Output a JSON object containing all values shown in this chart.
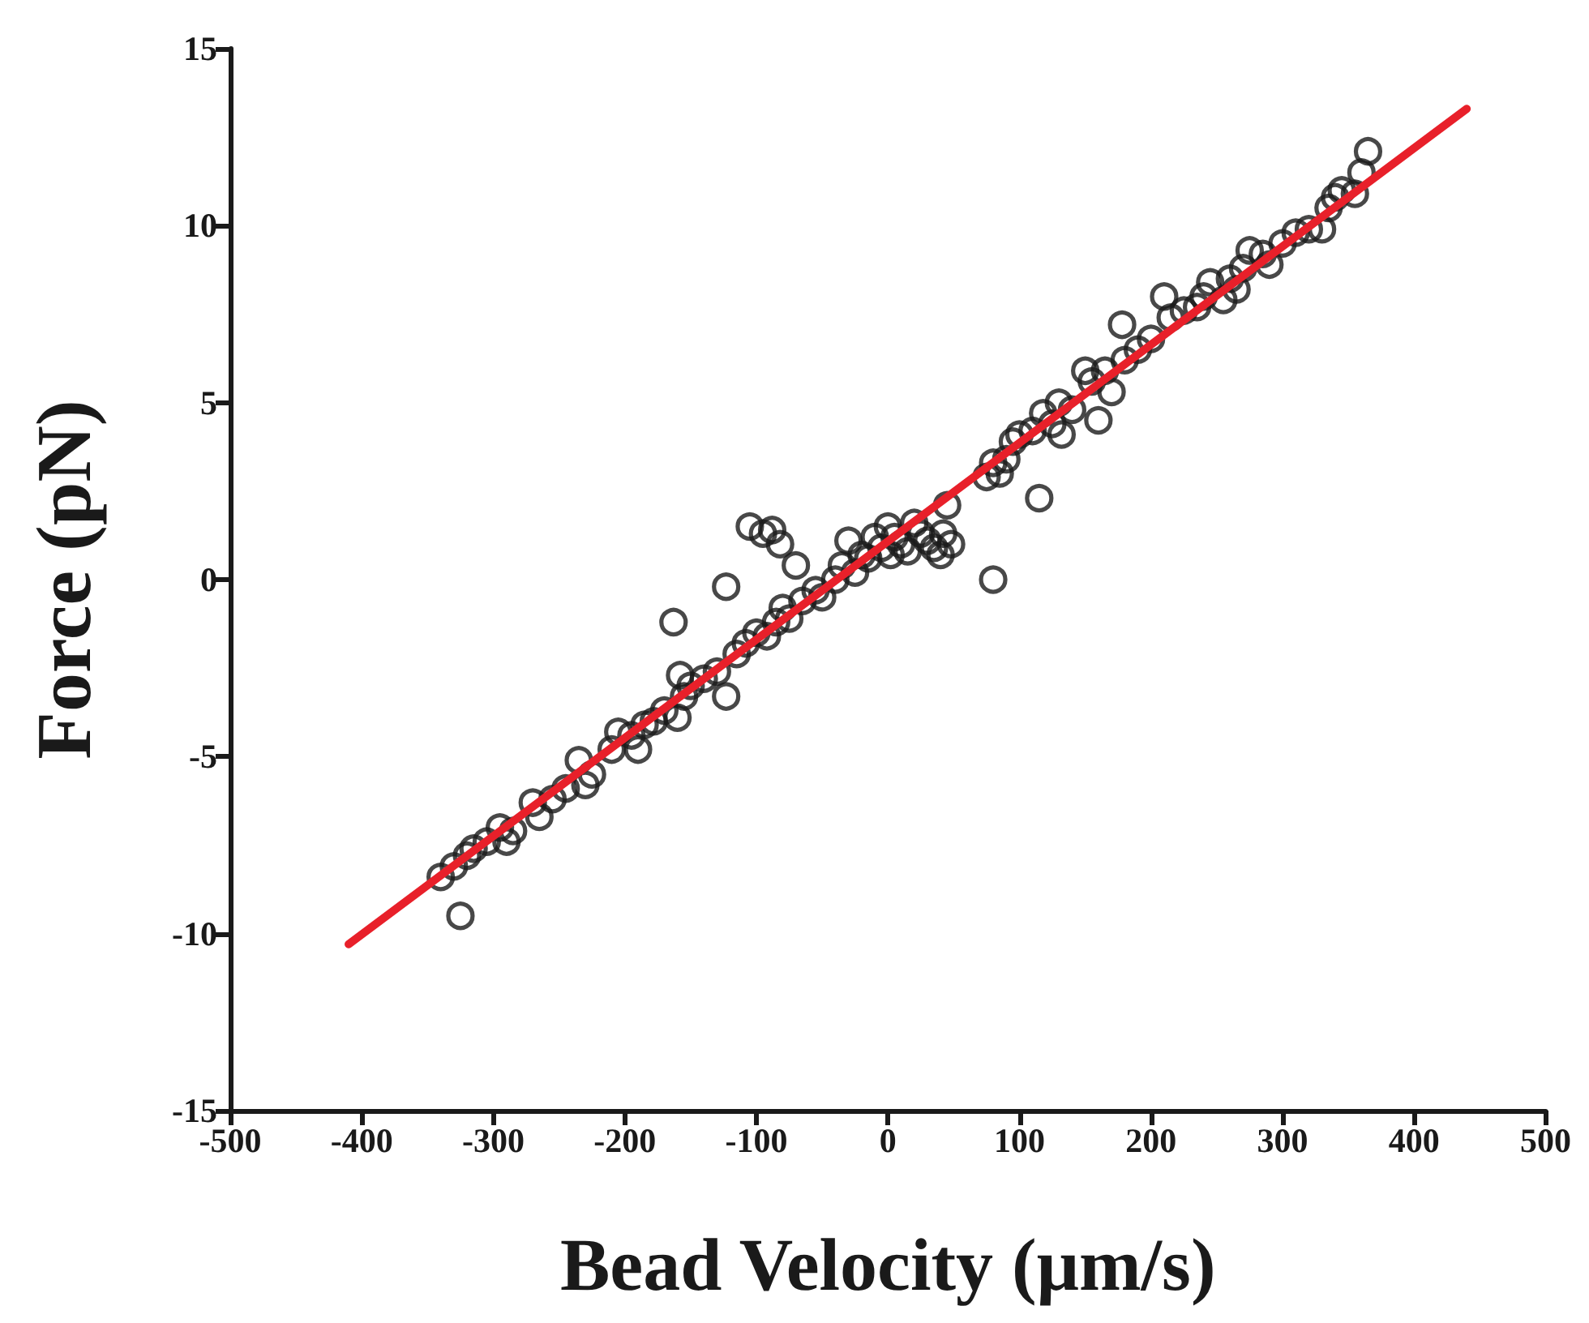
{
  "chart_data": {
    "type": "scatter",
    "xlabel": "Bead Velocity (μm/s)",
    "ylabel": "Force (pN)",
    "xlim": [
      -500,
      500
    ],
    "ylim": [
      -15,
      15
    ],
    "xticks": [
      -500,
      -400,
      -300,
      -200,
      -100,
      0,
      100,
      200,
      300,
      400,
      500
    ],
    "yticks": [
      -15,
      -10,
      -5,
      0,
      5,
      10,
      15
    ],
    "grid": false,
    "marker": "circle",
    "series": [
      {
        "color": "#1a1a1a",
        "x": [
          -340,
          -330,
          -325,
          -320,
          -315,
          -305,
          -295,
          -290,
          -285,
          -270,
          -265,
          -255,
          -245,
          -235,
          -230,
          -225,
          -210,
          -205,
          -195,
          -190,
          -185,
          -178,
          -170,
          -163,
          -160,
          -158,
          -155,
          -150,
          -140,
          -130,
          -123,
          -123,
          -115,
          -108,
          -105,
          -100,
          -95,
          -92,
          -88,
          -85,
          -82,
          -80,
          -75,
          -70,
          -65,
          -55,
          -50,
          -40,
          -35,
          -30,
          -25,
          -20,
          -15,
          -10,
          -5,
          0,
          2,
          5,
          10,
          15,
          20,
          25,
          30,
          35,
          40,
          42,
          45,
          48,
          75,
          80,
          80,
          85,
          90,
          95,
          100,
          110,
          115,
          118,
          125,
          130,
          132,
          140,
          150,
          155,
          160,
          165,
          170,
          178,
          180,
          190,
          200,
          210,
          215,
          225,
          235,
          240,
          245,
          255,
          260,
          265,
          270,
          275,
          285,
          290,
          300,
          310,
          320,
          330,
          335,
          340,
          345,
          355,
          360,
          365
        ],
        "values": [
          -8.4,
          -8.1,
          -9.5,
          -7.8,
          -7.6,
          -7.4,
          -7.0,
          -7.4,
          -7.1,
          -6.3,
          -6.7,
          -6.2,
          -5.9,
          -5.1,
          -5.8,
          -5.5,
          -4.8,
          -4.3,
          -4.4,
          -4.8,
          -4.1,
          -4.0,
          -3.7,
          -1.2,
          -3.9,
          -2.7,
          -3.3,
          -3.0,
          -2.8,
          -2.6,
          -0.2,
          -3.3,
          -2.1,
          -1.8,
          1.5,
          -1.5,
          1.3,
          -1.6,
          1.4,
          -1.2,
          1.0,
          -0.8,
          -1.1,
          0.4,
          -0.6,
          -0.3,
          -0.5,
          0.0,
          0.4,
          1.1,
          0.2,
          0.7,
          0.6,
          1.2,
          0.9,
          1.5,
          0.7,
          1.2,
          1.0,
          0.8,
          1.6,
          1.3,
          1.1,
          0.9,
          0.7,
          1.3,
          2.1,
          1.0,
          2.9,
          3.3,
          0.0,
          3.0,
          3.4,
          3.9,
          4.1,
          4.2,
          2.3,
          4.7,
          4.4,
          5.0,
          4.1,
          4.8,
          5.9,
          5.6,
          4.5,
          5.9,
          5.3,
          7.2,
          6.2,
          6.5,
          6.8,
          8.0,
          7.4,
          7.6,
          7.7,
          8.0,
          8.4,
          7.9,
          8.5,
          8.2,
          8.8,
          9.3,
          9.2,
          8.9,
          9.5,
          9.8,
          9.9,
          9.9,
          10.5,
          10.8,
          11.0,
          10.9,
          11.5,
          12.1
        ]
      },
      {
        "type": "line",
        "color": "#e8202a",
        "marker": "none",
        "x": [
          -410,
          440
        ],
        "values": [
          -10.3,
          13.3
        ]
      }
    ]
  }
}
